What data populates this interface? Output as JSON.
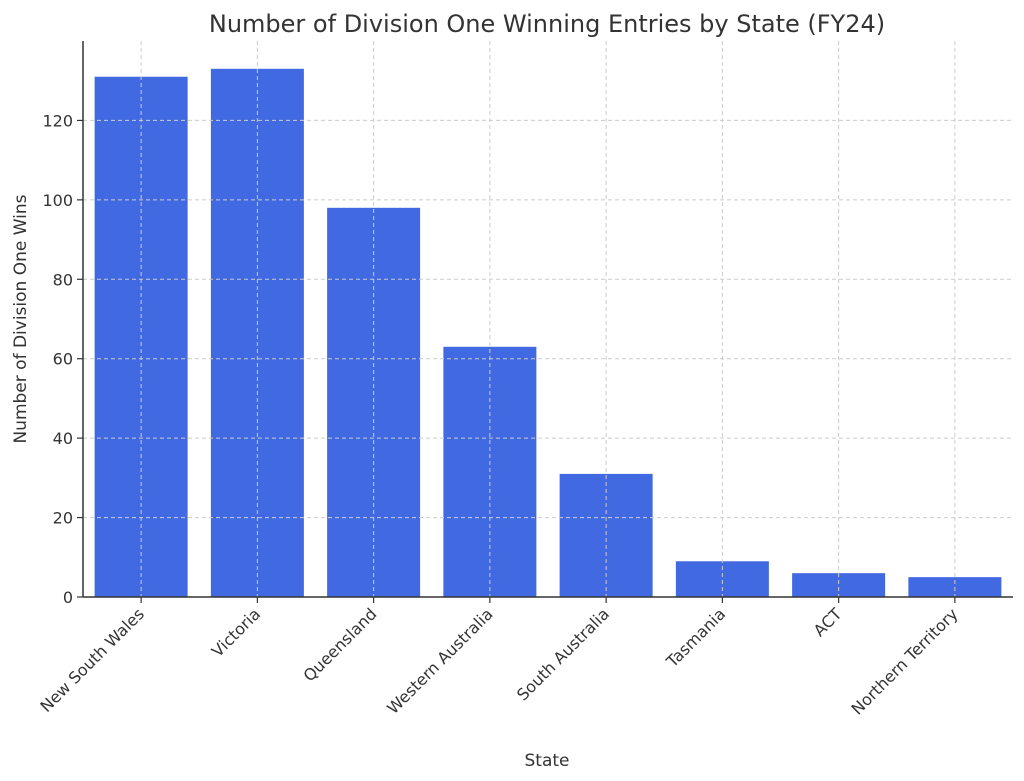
{
  "chart_data": {
    "type": "bar",
    "title": "Number of Division One Winning Entries by State (FY24)",
    "xlabel": "State",
    "ylabel": "Number of Division One Wins",
    "categories": [
      "New South Wales",
      "Victoria",
      "Queensland",
      "Western Australia",
      "South Australia",
      "Tasmania",
      "ACT",
      "Northern Territory"
    ],
    "values": [
      131,
      133,
      98,
      63,
      31,
      9,
      6,
      5
    ],
    "ylim": [
      0,
      140
    ],
    "yticks": [
      0,
      20,
      40,
      60,
      80,
      100,
      120
    ],
    "bar_color": "#4169e1",
    "grid": true,
    "legend": "none"
  }
}
